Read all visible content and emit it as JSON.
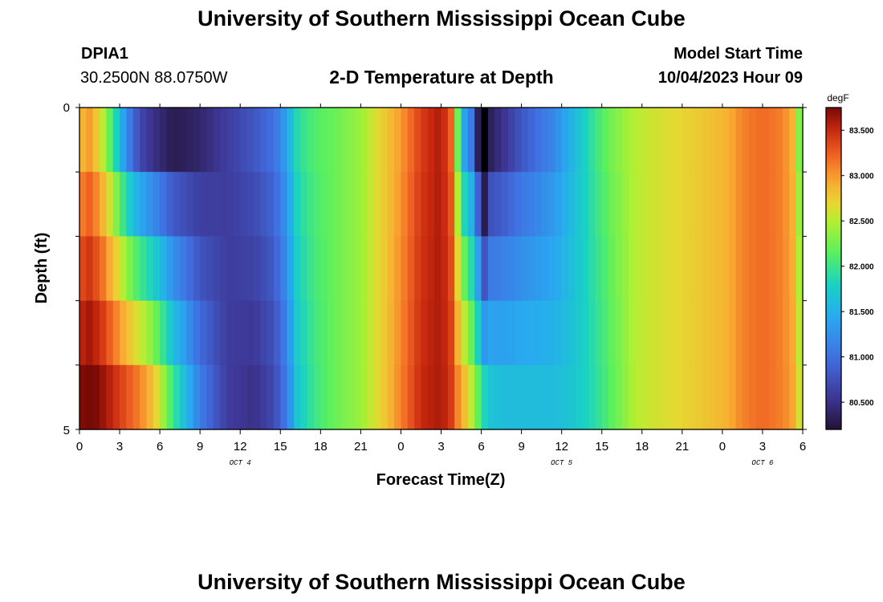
{
  "header": {
    "title": "University of Southern Mississippi Ocean Cube",
    "station": "DPIA1",
    "coords": "30.2500N  88.0750W",
    "plot_title": "2-D Temperature at Depth",
    "start_label": "Model Start Time",
    "start_value": "10/04/2023 Hour 09"
  },
  "footer": {
    "title": "University of Southern Mississippi Ocean Cube"
  },
  "chart_data": {
    "type": "heatmap",
    "title": "2-D Temperature at Depth",
    "xlabel": "Forecast Time(Z)",
    "ylabel": "Depth (ft)",
    "x_hours": [
      0,
      54
    ],
    "x_tick_labels": [
      "0",
      "3",
      "6",
      "9",
      "12",
      "15",
      "18",
      "21",
      "0",
      "3",
      "6",
      "9",
      "12",
      "15",
      "18",
      "21",
      "0",
      "3",
      "6"
    ],
    "day_labels": [
      {
        "text": "OCT 4",
        "hour": 12
      },
      {
        "text": "OCT 5",
        "hour": 36
      },
      {
        "text": "OCT 6",
        "hour": 51
      }
    ],
    "y_range": [
      0,
      5
    ],
    "y_tick_labels": [
      "0",
      "5"
    ],
    "depth_bands": 5,
    "colorbar": {
      "unit": "degF",
      "range": [
        80.2,
        83.75
      ],
      "ticks": [
        "80.500",
        "81.000",
        "81.500",
        "82.000",
        "82.500",
        "83.000",
        "83.500"
      ]
    },
    "temperature_profile": {
      "hours": [
        0,
        0.7,
        1.5,
        2.5,
        3.5,
        4.5,
        5.5,
        7,
        9,
        11,
        13,
        14.5,
        15.5,
        16.3,
        17.5,
        19,
        21,
        22.5,
        24,
        25.5,
        27,
        27.8,
        28.2,
        28.8,
        29.6,
        30.1,
        30.5,
        31.5,
        33,
        35.5,
        37,
        38.5,
        40,
        41.5,
        43,
        45,
        47,
        48.5,
        49.5,
        51,
        52.5,
        53.5,
        54
      ],
      "surface": [
        82.8,
        83.0,
        82.7,
        82.0,
        81.2,
        80.7,
        80.5,
        80.3,
        80.4,
        80.6,
        80.8,
        81.0,
        81.4,
        81.9,
        82.1,
        82.2,
        82.4,
        82.7,
        83.0,
        83.4,
        83.6,
        83.2,
        82.3,
        81.3,
        80.9,
        79.0,
        80.3,
        80.5,
        80.8,
        81.2,
        81.6,
        82.0,
        82.3,
        82.5,
        82.6,
        82.7,
        82.8,
        82.9,
        83.1,
        83.2,
        83.1,
        82.8,
        81.8
      ],
      "bottom": [
        83.7,
        83.8,
        83.7,
        83.5,
        83.3,
        83.1,
        82.8,
        82.0,
        81.1,
        80.6,
        80.5,
        80.7,
        81.1,
        81.7,
        82.0,
        82.2,
        82.4,
        82.7,
        83.1,
        83.5,
        83.6,
        83.4,
        83.1,
        82.8,
        82.3,
        81.9,
        81.7,
        81.6,
        81.6,
        81.6,
        81.7,
        81.9,
        82.2,
        82.5,
        82.6,
        82.7,
        82.8,
        82.9,
        83.1,
        83.2,
        83.1,
        82.9,
        82.3
      ]
    }
  }
}
